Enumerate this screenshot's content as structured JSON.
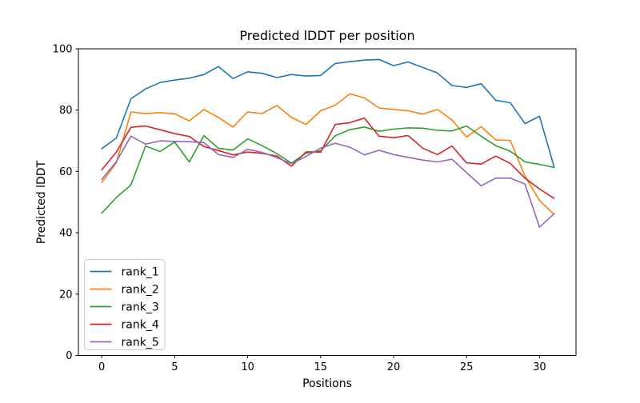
{
  "chart_data": {
    "type": "line",
    "title": "Predicted lDDT per position",
    "xlabel": "Positions",
    "ylabel": "Predicted lDDT",
    "xlim": [
      -1.6,
      32.5
    ],
    "ylim": [
      0,
      100
    ],
    "xticks": [
      0,
      5,
      10,
      15,
      20,
      25,
      30
    ],
    "yticks": [
      0,
      20,
      40,
      60,
      80,
      100
    ],
    "grid": false,
    "background": "#ffffff",
    "spine_color": "#000000",
    "legend": {
      "position": "lower left",
      "border_color": "#cccccc",
      "entries": [
        "rank_1",
        "rank_2",
        "rank_3",
        "rank_4",
        "rank_5"
      ]
    },
    "x": [
      0,
      1,
      2,
      3,
      4,
      5,
      6,
      7,
      8,
      9,
      10,
      11,
      12,
      13,
      14,
      15,
      16,
      17,
      18,
      19,
      20,
      21,
      22,
      23,
      24,
      25,
      26,
      27,
      28,
      29,
      30,
      31
    ],
    "series": [
      {
        "name": "rank_1",
        "color": "#1f77b4",
        "values": [
          67.4,
          70.9,
          83.7,
          86.9,
          89.0,
          89.8,
          90.4,
          91.6,
          94.2,
          90.3,
          92.5,
          92.0,
          90.6,
          91.6,
          91.1,
          91.3,
          95.2,
          95.8,
          96.3,
          96.5,
          94.5,
          95.7,
          93.9,
          92.1,
          88.0,
          87.4,
          88.6,
          83.2,
          82.4,
          75.6,
          78.0,
          61.5
        ]
      },
      {
        "name": "rank_2",
        "color": "#ff7f0e",
        "values": [
          56.4,
          62.8,
          79.4,
          78.9,
          79.2,
          78.8,
          76.5,
          80.2,
          77.6,
          74.5,
          79.4,
          78.9,
          81.5,
          77.6,
          75.3,
          79.8,
          81.6,
          85.3,
          84.0,
          80.7,
          80.2,
          79.8,
          78.7,
          80.2,
          76.8,
          71.2,
          74.6,
          70.3,
          70.1,
          58.5,
          50.5,
          46.0
        ]
      },
      {
        "name": "rank_3",
        "color": "#2ca02c",
        "values": [
          46.4,
          51.5,
          55.6,
          68.3,
          66.5,
          69.6,
          63.1,
          71.7,
          67.5,
          67.0,
          70.6,
          68.4,
          65.8,
          62.7,
          66.0,
          66.7,
          71.6,
          73.6,
          74.5,
          73.1,
          73.8,
          74.2,
          74.1,
          73.4,
          73.2,
          74.8,
          71.5,
          68.4,
          66.6,
          63.1,
          62.3,
          61.3
        ]
      },
      {
        "name": "rank_4",
        "color": "#d62728",
        "values": [
          60.5,
          66.3,
          74.4,
          74.8,
          73.6,
          72.3,
          71.4,
          68.1,
          66.8,
          65.4,
          66.3,
          65.9,
          65.0,
          61.7,
          66.4,
          66.3,
          75.3,
          75.9,
          77.4,
          71.5,
          71.0,
          71.7,
          67.6,
          65.5,
          68.3,
          62.8,
          62.4,
          65.0,
          62.6,
          57.8,
          54.3,
          51.2
        ]
      },
      {
        "name": "rank_5",
        "color": "#9467bd",
        "values": [
          57.4,
          63.2,
          71.5,
          68.9,
          70.0,
          69.8,
          69.7,
          69.4,
          65.5,
          64.6,
          67.2,
          66.2,
          64.5,
          62.5,
          64.9,
          67.6,
          69.2,
          67.9,
          65.4,
          66.9,
          65.5,
          64.6,
          63.7,
          63.1,
          64.0,
          59.6,
          55.3,
          57.8,
          57.8,
          55.9,
          41.8,
          46.2
        ]
      }
    ]
  }
}
